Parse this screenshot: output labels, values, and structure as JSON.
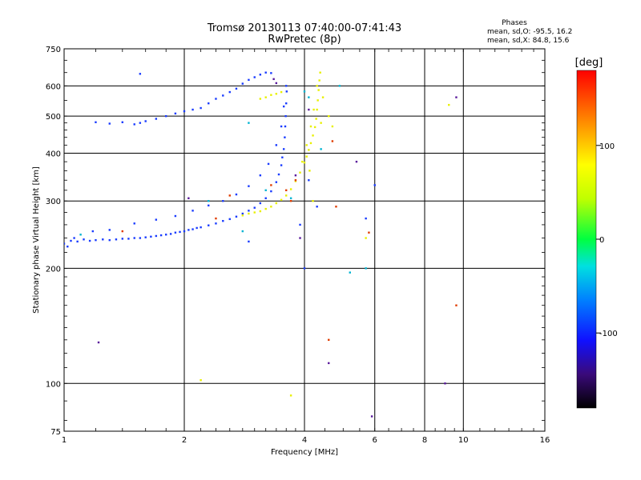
{
  "chart_data": {
    "type": "scatter",
    "title": "Tromsø 20130113 07:40:00-07:41:43",
    "subtitle": "RwPretec (8p)",
    "xlabel": "Frequency [MHz]",
    "ylabel": "Stationary phase Virtual Height [km]",
    "x_scale": "log",
    "y_scale": "log",
    "xlim": [
      1,
      16
    ],
    "ylim": [
      75,
      750
    ],
    "x_ticks": [
      {
        "value": 1,
        "label": "1"
      },
      {
        "value": 2,
        "label": "2"
      },
      {
        "value": 4,
        "label": "4"
      },
      {
        "value": 6,
        "label": "6"
      },
      {
        "value": 8,
        "label": "8"
      },
      {
        "value": 10,
        "label": "10"
      },
      {
        "value": 16,
        "label": "16"
      }
    ],
    "x_gridlines": [
      2,
      4,
      6,
      8,
      10
    ],
    "y_ticks": [
      {
        "value": 75,
        "label": "75"
      },
      {
        "value": 100,
        "label": "100"
      },
      {
        "value": 200,
        "label": "200"
      },
      {
        "value": 300,
        "label": "300"
      },
      {
        "value": 400,
        "label": "400"
      },
      {
        "value": 500,
        "label": "500"
      },
      {
        "value": 600,
        "label": "600"
      },
      {
        "value": 750,
        "label": "750"
      }
    ],
    "y_gridlines": [
      100,
      200,
      300,
      400,
      500,
      600
    ],
    "grid": true,
    "stats": {
      "header": "Phases",
      "line_o": "mean, sd,O: -95.5, 16.2",
      "line_x": "mean, sd,X:  84.8, 15.6"
    },
    "colorbar": {
      "label": "[deg]",
      "min": -180,
      "max": 180,
      "ticks": [
        {
          "value": 100,
          "label": "100"
        },
        {
          "value": 0,
          "label": "0"
        },
        {
          "value": -100,
          "label": "-100"
        }
      ]
    },
    "series": [
      {
        "mode": "O",
        "color": "#1a3cff",
        "phase_mean": -95.5,
        "points": [
          [
            1.0,
            232
          ],
          [
            1.02,
            228
          ],
          [
            1.04,
            236
          ],
          [
            1.06,
            240
          ],
          [
            1.08,
            235
          ],
          [
            1.12,
            238
          ],
          [
            1.16,
            236
          ],
          [
            1.2,
            237
          ],
          [
            1.25,
            238
          ],
          [
            1.3,
            237
          ],
          [
            1.35,
            238
          ],
          [
            1.4,
            239
          ],
          [
            1.45,
            239
          ],
          [
            1.5,
            240
          ],
          [
            1.55,
            240
          ],
          [
            1.6,
            241
          ],
          [
            1.65,
            242
          ],
          [
            1.7,
            243
          ],
          [
            1.75,
            244
          ],
          [
            1.8,
            245
          ],
          [
            1.85,
            246
          ],
          [
            1.9,
            248
          ],
          [
            1.95,
            249
          ],
          [
            2.0,
            250
          ],
          [
            2.05,
            252
          ],
          [
            2.1,
            253
          ],
          [
            2.15,
            255
          ],
          [
            2.2,
            256
          ],
          [
            2.3,
            259
          ],
          [
            2.4,
            262
          ],
          [
            2.5,
            266
          ],
          [
            2.6,
            269
          ],
          [
            2.7,
            273
          ],
          [
            2.8,
            278
          ],
          [
            2.9,
            283
          ],
          [
            3.0,
            288
          ],
          [
            3.1,
            296
          ],
          [
            3.2,
            305
          ],
          [
            3.3,
            318
          ],
          [
            3.4,
            336
          ],
          [
            3.45,
            352
          ],
          [
            3.5,
            372
          ],
          [
            3.52,
            390
          ],
          [
            3.55,
            410
          ],
          [
            3.57,
            440
          ],
          [
            3.58,
            470
          ],
          [
            3.59,
            500
          ],
          [
            3.6,
            540
          ],
          [
            3.61,
            580
          ],
          [
            1.18,
            250
          ],
          [
            1.3,
            252
          ],
          [
            1.5,
            262
          ],
          [
            1.7,
            268
          ],
          [
            1.9,
            274
          ],
          [
            2.1,
            283
          ],
          [
            2.3,
            292
          ],
          [
            2.5,
            300
          ],
          [
            2.7,
            312
          ],
          [
            2.9,
            328
          ],
          [
            3.1,
            350
          ],
          [
            3.25,
            375
          ],
          [
            3.4,
            420
          ],
          [
            3.5,
            470
          ],
          [
            3.55,
            530
          ],
          [
            3.6,
            600
          ],
          [
            1.2,
            482
          ],
          [
            1.3,
            478
          ],
          [
            1.4,
            482
          ],
          [
            1.5,
            476
          ],
          [
            1.55,
            480
          ],
          [
            1.6,
            485
          ],
          [
            1.7,
            492
          ],
          [
            1.8,
            500
          ],
          [
            1.9,
            508
          ],
          [
            2.0,
            515
          ],
          [
            2.1,
            520
          ],
          [
            2.2,
            525
          ],
          [
            2.3,
            540
          ],
          [
            2.4,
            555
          ],
          [
            2.5,
            566
          ],
          [
            2.6,
            578
          ],
          [
            2.7,
            590
          ],
          [
            2.8,
            608
          ],
          [
            2.9,
            622
          ],
          [
            3.0,
            632
          ],
          [
            3.1,
            642
          ],
          [
            3.2,
            650
          ],
          [
            3.3,
            648
          ],
          [
            1.55,
            645
          ],
          [
            4.0,
            200
          ],
          [
            4.1,
            340
          ],
          [
            4.3,
            290
          ],
          [
            5.7,
            270
          ],
          [
            6.0,
            330
          ],
          [
            3.9,
            260
          ],
          [
            2.9,
            235
          ]
        ]
      },
      {
        "mode": "X",
        "color": "#e8f000",
        "phase_mean": 84.8,
        "points": [
          [
            2.8,
            275
          ],
          [
            2.9,
            278
          ],
          [
            3.0,
            280
          ],
          [
            3.1,
            282
          ],
          [
            3.2,
            286
          ],
          [
            3.3,
            290
          ],
          [
            3.4,
            296
          ],
          [
            3.5,
            302
          ],
          [
            3.6,
            310
          ],
          [
            3.7,
            322
          ],
          [
            3.8,
            338
          ],
          [
            3.9,
            356
          ],
          [
            4.0,
            378
          ],
          [
            4.05,
            392
          ],
          [
            4.1,
            408
          ],
          [
            4.15,
            425
          ],
          [
            4.2,
            445
          ],
          [
            4.25,
            468
          ],
          [
            4.28,
            492
          ],
          [
            4.3,
            520
          ],
          [
            4.32,
            550
          ],
          [
            4.34,
            585
          ],
          [
            4.36,
            620
          ],
          [
            4.38,
            650
          ],
          [
            3.95,
            380
          ],
          [
            4.05,
            420
          ],
          [
            4.15,
            470
          ],
          [
            4.22,
            520
          ],
          [
            4.3,
            600
          ],
          [
            4.4,
            480
          ],
          [
            4.45,
            560
          ],
          [
            4.12,
            360
          ],
          [
            3.1,
            555
          ],
          [
            3.2,
            560
          ],
          [
            3.3,
            568
          ],
          [
            3.4,
            572
          ],
          [
            3.5,
            578
          ],
          [
            4.6,
            500
          ],
          [
            4.7,
            470
          ],
          [
            2.2,
            102
          ],
          [
            3.7,
            93
          ],
          [
            9.2,
            535
          ],
          [
            4.2,
            300
          ],
          [
            5.7,
            240
          ]
        ]
      },
      {
        "mode": "other",
        "color": "#e03c00",
        "points": [
          [
            3.3,
            330
          ],
          [
            3.6,
            320
          ],
          [
            3.7,
            300
          ],
          [
            4.6,
            130
          ],
          [
            5.8,
            248
          ],
          [
            9.6,
            160
          ],
          [
            2.6,
            310
          ],
          [
            1.4,
            250
          ],
          [
            4.7,
            430
          ],
          [
            3.8,
            340
          ],
          [
            2.4,
            270
          ],
          [
            4.8,
            290
          ]
        ]
      },
      {
        "mode": "other",
        "color": "#00b4d2",
        "points": [
          [
            2.9,
            480
          ],
          [
            3.7,
            305
          ],
          [
            4.4,
            410
          ],
          [
            4.9,
            600
          ],
          [
            5.7,
            200
          ],
          [
            4.1,
            560
          ],
          [
            3.2,
            320
          ],
          [
            2.8,
            250
          ],
          [
            5.2,
            195
          ],
          [
            4.0,
            580
          ],
          [
            1.1,
            245
          ],
          [
            2.3,
            300
          ]
        ]
      },
      {
        "mode": "other",
        "color": "#5a1a9c",
        "points": [
          [
            1.22,
            128
          ],
          [
            3.8,
            350
          ],
          [
            4.6,
            113
          ],
          [
            5.9,
            82
          ],
          [
            9.0,
            100
          ],
          [
            9.6,
            560
          ],
          [
            3.35,
            625
          ],
          [
            3.4,
            610
          ],
          [
            2.05,
            305
          ],
          [
            3.9,
            240
          ],
          [
            4.1,
            520
          ],
          [
            5.4,
            380
          ]
        ]
      }
    ]
  }
}
